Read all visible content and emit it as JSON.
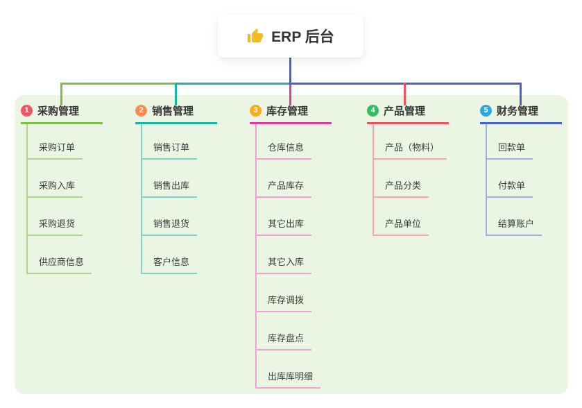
{
  "canvas": {
    "background": "#ffffff",
    "panel_background": "#eaf6e3",
    "root_connector_color": "#4a5fd0"
  },
  "root_node": {
    "icon": "thumbs-up-icon",
    "icon_color": "#f5b826",
    "label": "ERP 后台"
  },
  "branches": [
    {
      "number": "1",
      "label": "采购管理",
      "badge_color": "#f25565",
      "line_color": "#7cbe46",
      "tint_color": "#abd78b",
      "children": [
        "采购订单",
        "采购入库",
        "采购退货",
        "供应商信息"
      ]
    },
    {
      "number": "2",
      "label": "销售管理",
      "badge_color": "#fa8d4b",
      "line_color": "#19b5a4",
      "tint_color": "#7fd2c9",
      "children": [
        "销售订单",
        "销售出库",
        "销售退货",
        "客户信息"
      ]
    },
    {
      "number": "3",
      "label": "库存管理",
      "badge_color": "#fbab1e",
      "line_color": "#df3da0",
      "tint_color": "#f0a0d1",
      "children": [
        "仓库信息",
        "产品库存",
        "其它出库",
        "其它入库",
        "库存调拨",
        "库存盘点",
        "出库库明细"
      ]
    },
    {
      "number": "4",
      "label": "产品管理",
      "badge_color": "#2fbe5d",
      "line_color": "#f0535f",
      "tint_color": "#f7a7ab",
      "children": [
        "产品（物料）",
        "产品分类",
        "产品单位"
      ]
    },
    {
      "number": "5",
      "label": "财务管理",
      "badge_color": "#2ba7e1",
      "line_color": "#4a5fd0",
      "tint_color": "#9dafe0",
      "children": [
        "回款单",
        "付款单",
        "结算账户"
      ]
    }
  ]
}
